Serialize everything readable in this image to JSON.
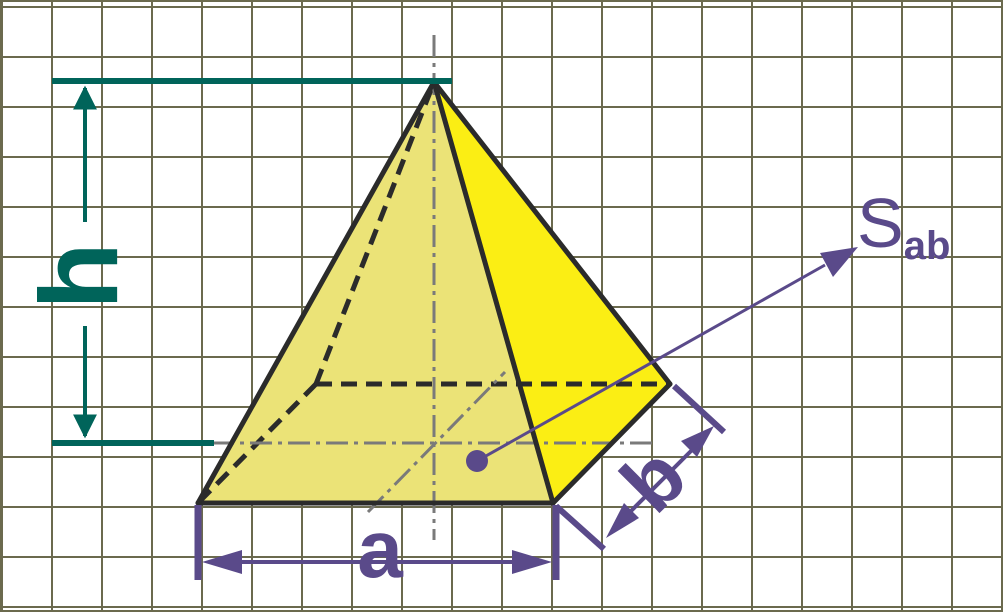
{
  "diagram": {
    "labels": {
      "height": "h",
      "base_length": "a",
      "base_width": "b",
      "area_symbol": "S",
      "area_subscript": "ab"
    },
    "colors": {
      "grid": "#6b6a4e",
      "front_face": "#ebe377",
      "right_face": "#fbee14",
      "edge": "#2b2b2b",
      "axis": "#7a7a7a",
      "height_marker": "#00645a",
      "dimension": "#5a4a8a",
      "background": "#ffffff"
    }
  }
}
